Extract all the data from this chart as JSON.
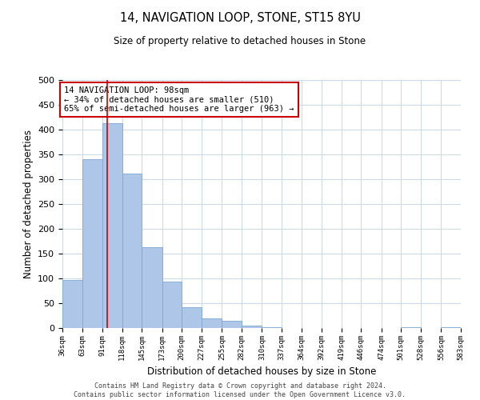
{
  "title": "14, NAVIGATION LOOP, STONE, ST15 8YU",
  "subtitle": "Size of property relative to detached houses in Stone",
  "xlabel": "Distribution of detached houses by size in Stone",
  "ylabel": "Number of detached properties",
  "bin_edges": [
    36,
    63,
    91,
    118,
    145,
    173,
    200,
    227,
    255,
    282,
    310,
    337,
    364,
    392,
    419,
    446,
    474,
    501,
    528,
    556,
    583
  ],
  "bar_heights": [
    97,
    340,
    413,
    311,
    163,
    93,
    42,
    20,
    15,
    5,
    2,
    0,
    0,
    0,
    0,
    0,
    0,
    2,
    0,
    2
  ],
  "bar_color": "#aec6e8",
  "bar_edgecolor": "#7aa8d2",
  "property_size": 98,
  "vline_color": "#cc0000",
  "annotation_line1": "14 NAVIGATION LOOP: 98sqm",
  "annotation_line2": "← 34% of detached houses are smaller (510)",
  "annotation_line3": "65% of semi-detached houses are larger (963) →",
  "annotation_box_edgecolor": "#cc0000",
  "ylim": [
    0,
    500
  ],
  "yticks": [
    0,
    50,
    100,
    150,
    200,
    250,
    300,
    350,
    400,
    450,
    500
  ],
  "footer_line1": "Contains HM Land Registry data © Crown copyright and database right 2024.",
  "footer_line2": "Contains public sector information licensed under the Open Government Licence v3.0.",
  "bg_color": "#ffffff",
  "grid_color": "#c8d8e8",
  "figsize": [
    6.0,
    5.0
  ],
  "dpi": 100
}
